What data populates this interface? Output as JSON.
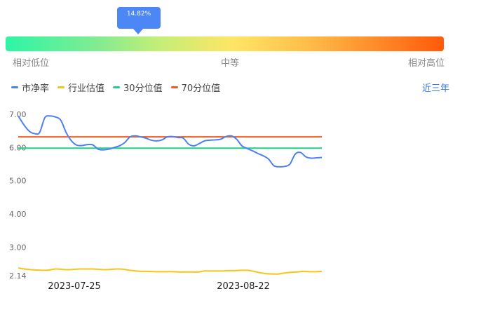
{
  "indicator": {
    "tooltip": "14.82%",
    "percentile": 14.82,
    "labels": [
      "相对低位",
      "中等",
      "相对高位"
    ]
  },
  "legend": [
    {
      "label": "市净率",
      "color": "#4d7ff5"
    },
    {
      "label": "行业估值",
      "color": "#f5c518"
    },
    {
      "label": "30分位值",
      "color": "#1fd083"
    },
    {
      "label": "70分位值",
      "color": "#f25a1f"
    }
  ],
  "range_label": "近三年",
  "chart_data": {
    "type": "line",
    "ylim": [
      2.14,
      7.0
    ],
    "yticks": [
      "7.00",
      "6.00",
      "5.00",
      "4.00",
      "3.00",
      "2.14"
    ],
    "xtick_labels": [
      "2023-07-25",
      "2023-08-22"
    ],
    "series": [
      {
        "name": "市净率",
        "color": "#4d7ff5",
        "values": [
          6.95,
          6.7,
          6.5,
          6.42,
          6.45,
          6.9,
          6.95,
          6.92,
          6.82,
          6.45,
          6.2,
          6.07,
          6.06,
          6.09,
          6.08,
          5.95,
          5.93,
          5.95,
          6.0,
          6.05,
          6.15,
          6.32,
          6.35,
          6.32,
          6.28,
          6.22,
          6.2,
          6.23,
          6.32,
          6.33,
          6.3,
          6.28,
          6.1,
          6.05,
          6.12,
          6.2,
          6.22,
          6.23,
          6.25,
          6.33,
          6.35,
          6.25,
          6.05,
          5.97,
          5.9,
          5.82,
          5.75,
          5.65,
          5.45,
          5.42,
          5.43,
          5.5,
          5.8,
          5.85,
          5.72,
          5.68,
          5.69,
          5.7
        ]
      },
      {
        "name": "行业估值",
        "color": "#f5c518",
        "values": [
          2.37,
          2.34,
          2.32,
          2.31,
          2.3,
          2.31,
          2.34,
          2.33,
          2.32,
          2.33,
          2.34,
          2.34,
          2.34,
          2.33,
          2.32,
          2.33,
          2.34,
          2.33,
          2.3,
          2.28,
          2.27,
          2.27,
          2.26,
          2.26,
          2.26,
          2.26,
          2.25,
          2.25,
          2.25,
          2.25,
          2.28,
          2.28,
          2.28,
          2.28,
          2.29,
          2.29,
          2.3,
          2.3,
          2.27,
          2.23,
          2.2,
          2.19,
          2.19,
          2.22,
          2.24,
          2.25,
          2.27,
          2.26,
          2.26,
          2.27
        ]
      },
      {
        "name": "30分位值",
        "color": "#1fd083",
        "values": [
          5.98,
          5.98
        ]
      },
      {
        "name": "70分位值",
        "color": "#f25a1f",
        "values": [
          6.32,
          6.32
        ]
      }
    ]
  }
}
